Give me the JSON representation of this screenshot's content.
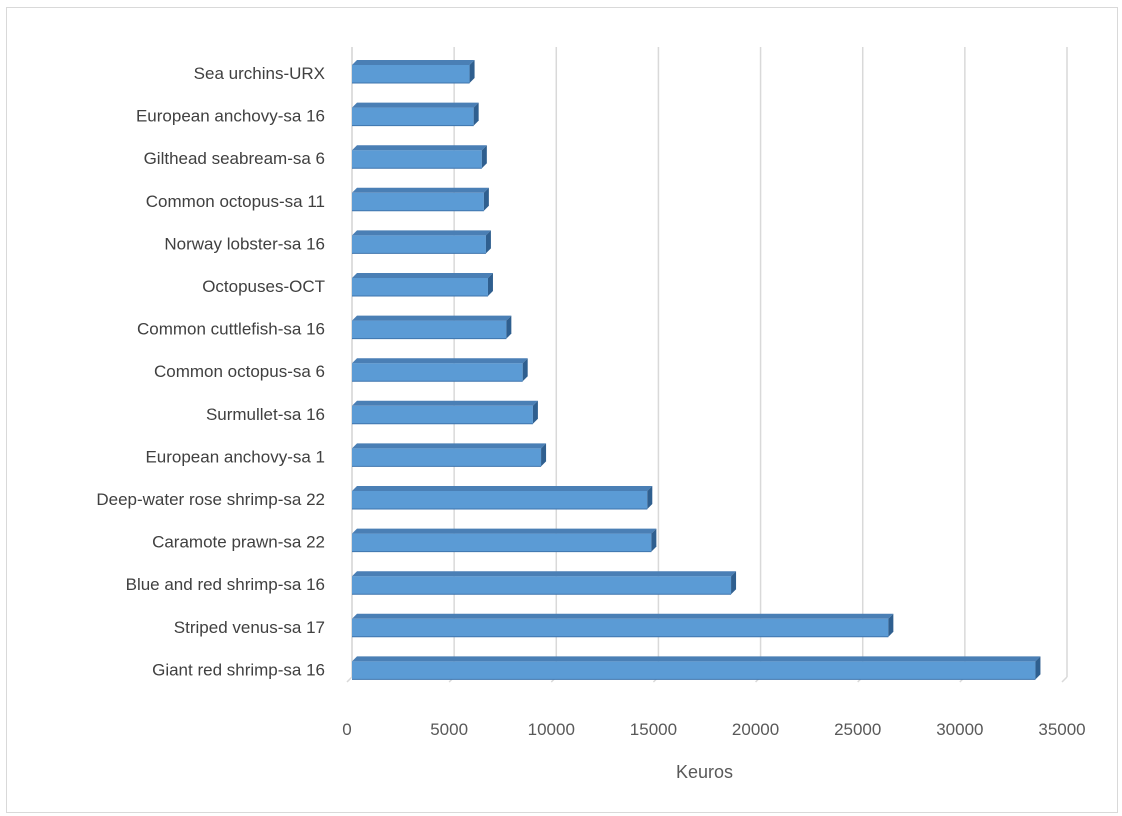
{
  "chart_data": {
    "type": "bar",
    "orientation": "horizontal",
    "style": "3d-bar",
    "title": "",
    "xlabel": "Keuros",
    "ylabel": "",
    "xlim": [
      0,
      35000
    ],
    "xticks": [
      0,
      5000,
      10000,
      15000,
      20000,
      25000,
      30000,
      35000
    ],
    "xtick_labels": [
      "0",
      "5000",
      "10000",
      "15000",
      "20000",
      "25000",
      "30000",
      "35000"
    ],
    "grid": "vertical",
    "legend": "none",
    "bar_color": "#5b9bd5",
    "bar_top_color": "#4a7fb5",
    "bar_side_color": "#2f5f8f",
    "categories": [
      "Sea urchins-URX",
      "European anchovy-sa 16",
      "Gilthead seabream-sa 6",
      "Common octopus-sa 11",
      "Norway lobster-sa 16",
      "Octopuses-OCT",
      "Common cuttlefish-sa 16",
      "Common octopus-sa 6",
      "Surmullet-sa 16",
      "European anchovy-sa 1",
      "Deep-water rose shrimp-sa 22",
      "Caramote prawn-sa 22",
      "Blue and red shrimp-sa 16",
      "Striped venus-sa 17",
      "Giant red shrimp-sa 16"
    ],
    "values": [
      6000,
      6200,
      6600,
      6700,
      6800,
      6900,
      7800,
      8600,
      9100,
      9500,
      14700,
      14900,
      18800,
      26500,
      33700
    ]
  }
}
